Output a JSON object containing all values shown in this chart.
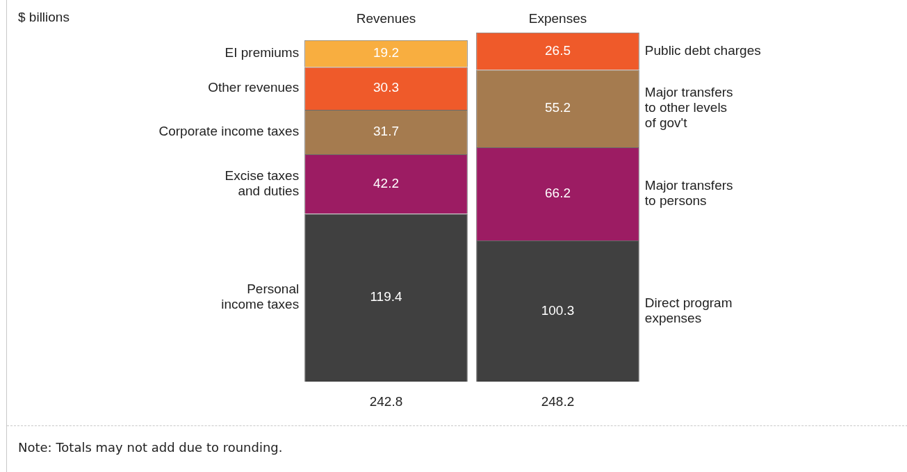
{
  "chart_data": {
    "type": "bar",
    "stacked": true,
    "categories": [
      "Revenues",
      "Expenses"
    ],
    "series": [
      {
        "name": "Personal\nincome taxes",
        "color": "#404040",
        "values": [
          119.4,
          null
        ]
      },
      {
        "name": "Excise taxes\nand duties",
        "color": "#9c1c63",
        "values": [
          42.2,
          null
        ]
      },
      {
        "name": "Corporate income taxes",
        "color": "#a57b4f",
        "values": [
          31.7,
          null
        ]
      },
      {
        "name": "Other revenues",
        "color": "#ef5a2a",
        "values": [
          30.3,
          null
        ]
      },
      {
        "name": "EI premiums",
        "color": "#f8ae40",
        "values": [
          19.2,
          null
        ]
      },
      {
        "name": "Direct program\nexpenses",
        "color": "#404040",
        "values": [
          null,
          100.3
        ]
      },
      {
        "name": "Major transfers\nto persons",
        "color": "#9c1c63",
        "values": [
          null,
          66.2
        ]
      },
      {
        "name": "Major transfers\nto other levels\nof gov't",
        "color": "#a57b4f",
        "values": [
          null,
          55.2
        ]
      },
      {
        "name": "Public debt charges",
        "color": "#ef5a2a",
        "values": [
          null,
          26.5
        ]
      }
    ],
    "data_labels": true,
    "totals": [
      "242.8",
      "248.2"
    ],
    "legend": false,
    "grid": false,
    "annotations": [
      "$ billions",
      "Note: Totals may not add due to rounding."
    ]
  }
}
